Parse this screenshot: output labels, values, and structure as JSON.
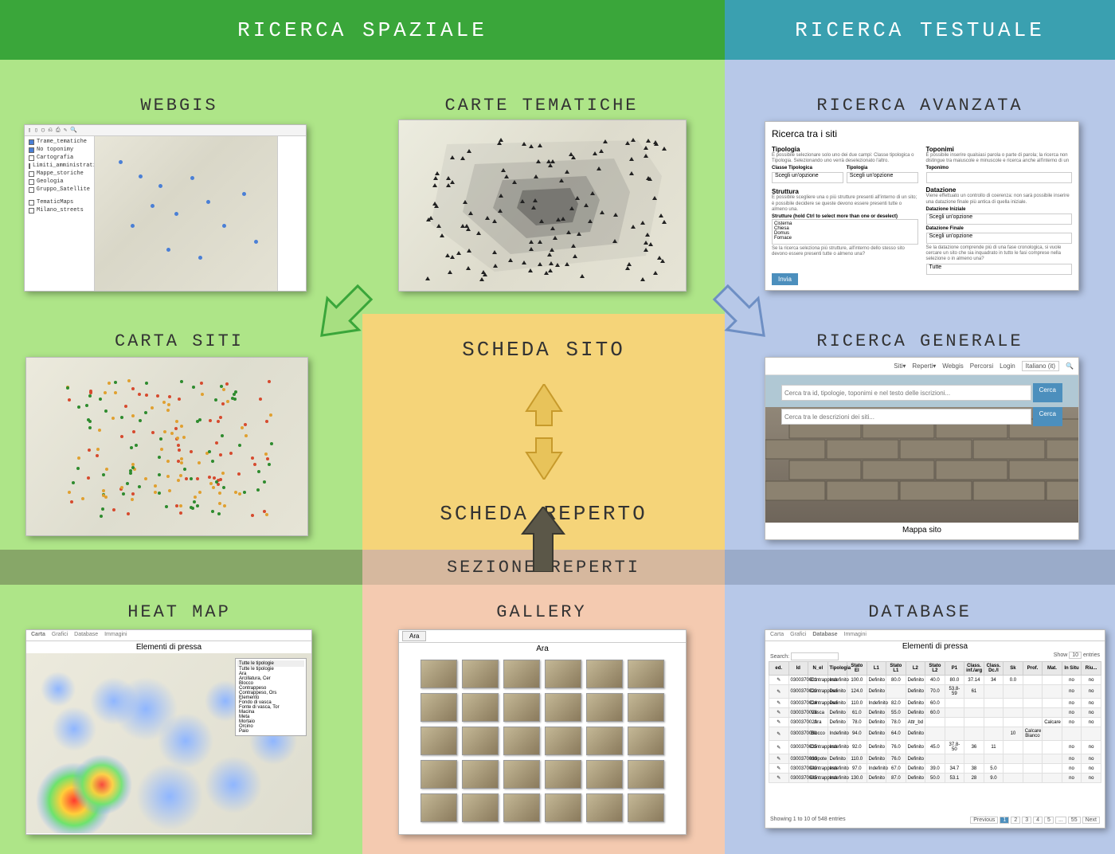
{
  "headers": {
    "spatial": "RICERCA  SPAZIALE",
    "textual": "RICERCA  TESTUALE"
  },
  "colors": {
    "header_green": "#3aa63a",
    "header_teal": "#3aa0b0",
    "body_green": "#aee588",
    "body_blue": "#b7c8e8",
    "center_yellow": "#f5d479",
    "reperti_bar": "#d6b89e",
    "olive": "#87a768",
    "peach": "#f4cab0",
    "arrow_green_fill": "#a7df81",
    "arrow_green_stroke": "#3aa63a",
    "arrow_blue_fill": "#b7c8e8",
    "arrow_blue_stroke": "#6e8fc4",
    "arrow_yellow_fill": "#e8c35a",
    "arrow_yellow_stroke": "#c79a2b",
    "arrow_dark_fill": "#5b5748",
    "arrow_dark_stroke": "#3a3830"
  },
  "center": {
    "top_label": "SCHEDA SITO",
    "bottom_label": "SCHEDA REPERTO"
  },
  "reperti_bar_label": "SEZIONE REPERTI",
  "sections": {
    "webgis": {
      "title": "WEBGIS"
    },
    "carte_tematiche": {
      "title": "CARTE TEMATICHE"
    },
    "ricerca_avanzata": {
      "title": "RICERCA AVANZATA"
    },
    "carta_siti": {
      "title": "CARTA SITI"
    },
    "ricerca_generale": {
      "title": "RICERCA GENERALE"
    },
    "heat_map": {
      "title": "HEAT MAP"
    },
    "gallery": {
      "title": "GALLERY"
    },
    "database": {
      "title": "DATABASE"
    }
  },
  "webgis_thumb": {
    "layers": [
      "Trame_tematiche",
      "No toponimy",
      "Cartografia",
      "Limiti_amministrativi",
      "Mappe_storiche",
      "Geologia",
      "Gruppo_Satellite"
    ],
    "layer_group2": [
      "TematicMaps",
      "Milano_streets"
    ]
  },
  "adv_search_thumb": {
    "title": "Ricerca tra i siti",
    "col1_title": "Tipologia",
    "col1_text": "È possibile selezionare solo uno dei due campi: Classe tipologica o Tipologia. Selezionando uno verrà deselezionato l'altro.",
    "classe_label": "Classe Tipologica",
    "tipologia_label": "Tipologia",
    "select_placeholder": "Scegli un'opzione",
    "struttura_title": "Struttura",
    "struttura_text": "È possibile scegliere una o più strutture presenti all'interno di un sito; è possibile decidere se queste devono essere presenti tutte o almeno una.",
    "struttura_list_label": "Strutture (hold Ctrl to select more than one or deselect)",
    "struttura_items": [
      "Cisterna",
      "Chiesa",
      "Domus",
      "Fornace"
    ],
    "tutte_text": "Se la ricerca seleziona più strutture, all'interno dello stesso sito devono essere presenti tutte o almeno una?",
    "col2_title": "Toponimi",
    "col2_text": "È possibile inserire qualsiasi parola o parte di parola; la ricerca non distingue tra maiuscole e minuscole e ricerca anche all'interno di un",
    "toponimo_label": "Toponimo",
    "datazione_title": "Datazione",
    "datazione_text": "Viene effettuato un controllo di coerenza: non sarà possibile inserire una datazione finale più antica di quella iniziale.",
    "dat_init_label": "Datazione Iniziale",
    "dat_fin_label": "Datazione Finale",
    "fase_text": "Se la datazione comprende più di una fase cronologica, si vuole cercare un sito che sia inquadrato in tutto le fasi comprese nella selezione o in almeno una?",
    "tutte_label": "Tutte",
    "invia_btn": "Invia"
  },
  "gen_search_thumb": {
    "nav": [
      "Siti▾",
      "Reperti▾",
      "Webgis",
      "Percorsi",
      "Login"
    ],
    "lang": "Italiano (it)",
    "search1_placeholder": "Cerca tra id, tipologie, toponimi e nel testo delle iscrizioni...",
    "search2_placeholder": "Cerca tra le descrizioni dei siti...",
    "cerca_btn": "Cerca",
    "bottom_label": "Mappa sito"
  },
  "heatmap_thumb": {
    "title": "Elementi di pressa",
    "tabs": [
      "Carta",
      "Grafici",
      "Database",
      "Immagini"
    ],
    "filter_label": "Tutte le tipologie",
    "filter_items": [
      "Tutte le tipologie",
      "Ara",
      "Arcillatura, Cer",
      "Blocco",
      "",
      "Contrappeso",
      "Contrappeso, Ors",
      "Elemento",
      "Fondo di vasca",
      "Fonte di vasca, Tor",
      "Macina",
      "Meta",
      "Mortaio",
      "Orcino",
      "Paio"
    ]
  },
  "gallery_thumb": {
    "tab_label": "Ara",
    "title": "Ara",
    "rows": 5,
    "cols": 6
  },
  "database_thumb": {
    "tabs": [
      "Carta",
      "Grafici",
      "Database",
      "Immagini"
    ],
    "title": "Elementi di pressa",
    "search_label": "Search:",
    "show_label": "Show",
    "entries_label": "entries",
    "columns": [
      "ed.",
      "Id",
      "N_el",
      "Tipologia",
      "Stato El",
      "L1",
      "Stato L1",
      "L2",
      "Stato L2",
      "P1",
      "Class. inf./arg",
      "Class. Dc./l",
      "Sk",
      "Prof.",
      "Mat.",
      "In Situ",
      "Riu..."
    ],
    "rows": [
      [
        "✎",
        "0300370001",
        "Contrappeso",
        "Indefinito",
        "100.0",
        "Definito",
        "80.0",
        "Definito",
        "40.0",
        "80.0",
        "37.14",
        "34",
        "0.0",
        "",
        "",
        "no",
        "no"
      ],
      [
        "✎",
        "0300370020",
        "Contrappeso",
        "Definito",
        "124.0",
        "Definito",
        "",
        "Definito",
        "70.0",
        "53.8-59",
        "61",
        "",
        "",
        "",
        "",
        "no",
        "no"
      ],
      [
        "✎",
        "0300370024",
        "Contrappeso",
        "Definito",
        "110.0",
        "Indefinito",
        "82.0",
        "Definito",
        "60.0",
        "",
        "",
        "",
        "",
        "",
        "",
        "no",
        "no"
      ],
      [
        "✎",
        "0300370028",
        "Vasca",
        "Definito",
        "61.0",
        "Definito",
        "55.0",
        "Definito",
        "60.0",
        "",
        "",
        "",
        "",
        "",
        "",
        "no",
        "no"
      ],
      [
        "✎",
        "0300370029",
        "Ara",
        "Definito",
        "78.0",
        "Definito",
        "78.0",
        "Attr_bd",
        "",
        "",
        "",
        "",
        "",
        "",
        "Calcare",
        "no",
        "no"
      ],
      [
        "✎",
        "0300370031",
        "Blocco",
        "Indefinito",
        "94.0",
        "Definito",
        "64.0",
        "Definito",
        "",
        "",
        "",
        "",
        "10",
        "Calcare Bianco",
        "",
        "",
        ""
      ],
      [
        "✎",
        "0300370035",
        "Contrappeso",
        "Indefinito",
        "92.0",
        "Definito",
        "76.0",
        "Definito",
        "45.0",
        "37.8-50",
        "36",
        "11",
        "",
        "",
        "",
        "no",
        "no"
      ],
      [
        "✎",
        "0300370039",
        "Incipote",
        "Definito",
        "110.0",
        "Definito",
        "76.0",
        "Definito",
        "",
        "",
        "",
        "",
        "",
        "",
        "",
        "no",
        "no"
      ],
      [
        "✎",
        "0300370040",
        "Contrappeso",
        "Indefinito",
        "97.0",
        "Indefinito",
        "67.0",
        "Definito",
        "39.0",
        "34.7",
        "38",
        "5.0",
        "",
        "",
        "",
        "no",
        "no"
      ],
      [
        "✎",
        "0300370045",
        "Contrappeso",
        "Indefinito",
        "130.0",
        "Definito",
        "87.0",
        "Definito",
        "50.0",
        "53.1",
        "28",
        "9.0",
        "",
        "",
        "",
        "no",
        "no"
      ]
    ],
    "footer_text": "Showing 1 to 10 of 548 entries",
    "pager": [
      "Previous",
      "1",
      "2",
      "3",
      "4",
      "5",
      "...",
      "55",
      "Next"
    ]
  }
}
